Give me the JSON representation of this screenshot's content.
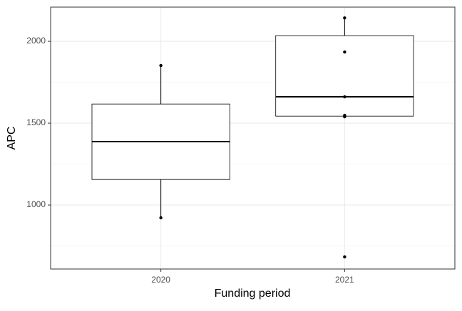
{
  "chart_data": {
    "type": "box",
    "x_label": "Funding period",
    "y_label": "APC",
    "categories": [
      "2020",
      "2021"
    ],
    "boxes": [
      {
        "whisker_low": 922,
        "q1": 1156,
        "median": 1387,
        "q3": 1617,
        "whisker_high": 1852
      },
      {
        "whisker_low": 1539,
        "q1": 1543,
        "median": 1661,
        "q3": 2035,
        "whisker_high": 2143
      }
    ],
    "points": [
      [
        1852,
        922
      ],
      [
        2143,
        1935,
        1661,
        1548,
        1539,
        683
      ]
    ],
    "ylim": [
      609,
      2209
    ],
    "yticks": [
      1000,
      1500,
      2000
    ],
    "minor_yticks": [
      750,
      1250,
      1750
    ],
    "grid": true,
    "color": "#000000"
  }
}
